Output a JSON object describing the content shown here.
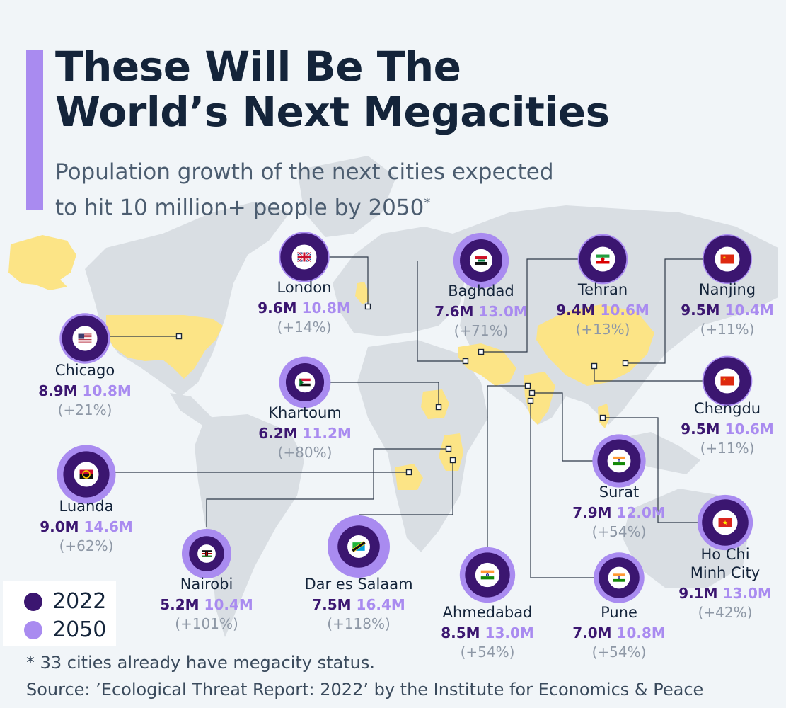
{
  "header": {
    "title_line1": "These Will Be The",
    "title_line2": "World’s Next Megacities",
    "subtitle_line1": "Population growth of the next cities expected",
    "subtitle_line2": "to hit 10 million+ people by 2050",
    "subtitle_mark": "*"
  },
  "legend": {
    "items": [
      {
        "label": "2022",
        "color": "#3b1670"
      },
      {
        "label": "2050",
        "color": "#a98bf0"
      }
    ]
  },
  "footer": {
    "footnote": "* 33 cities already have megacity status.",
    "source": "Source: ’Ecological Threat Report: 2022’ by the Institute for Economics & Peace"
  },
  "colors": {
    "pop_2022": "#3b1670",
    "pop_2050": "#a98bf0",
    "map_land": "#d9dee3",
    "map_highlight": "#fce486",
    "title": "#14243a"
  },
  "chart_data": {
    "type": "bubble-map",
    "title": "These Will Be The World’s Next Megacities",
    "subtitle": "Population growth of the next cities expected to hit 10 million+ people by 2050*",
    "unit": "million people",
    "series": [
      {
        "name": "2022",
        "color": "#3b1670"
      },
      {
        "name": "2050",
        "color": "#a98bf0"
      }
    ],
    "cities": [
      {
        "name": "London",
        "flag": "uk-flag-icon",
        "pop_2022": 9.6,
        "pop_2050": 10.8,
        "label_2022": "9.6M",
        "label_2050": "10.8M",
        "growth": "(+14%)"
      },
      {
        "name": "Baghdad",
        "flag": "iraq-flag-icon",
        "pop_2022": 7.6,
        "pop_2050": 13.0,
        "label_2022": "7.6M",
        "label_2050": "13.0M",
        "growth": "(+71%)"
      },
      {
        "name": "Tehran",
        "flag": "iran-flag-icon",
        "pop_2022": 9.4,
        "pop_2050": 10.6,
        "label_2022": "9.4M",
        "label_2050": "10.6M",
        "growth": "(+13%)"
      },
      {
        "name": "Nanjing",
        "flag": "china-flag-icon",
        "pop_2022": 9.5,
        "pop_2050": 10.4,
        "label_2022": "9.5M",
        "label_2050": "10.4M",
        "growth": "(+11%)"
      },
      {
        "name": "Chicago",
        "flag": "usa-flag-icon",
        "pop_2022": 8.9,
        "pop_2050": 10.8,
        "label_2022": "8.9M",
        "label_2050": "10.8M",
        "growth": "(+21%)"
      },
      {
        "name": "Khartoum",
        "flag": "sudan-flag-icon",
        "pop_2022": 6.2,
        "pop_2050": 11.2,
        "label_2022": "6.2M",
        "label_2050": "11.2M",
        "growth": "(+80%)"
      },
      {
        "name": "Chengdu",
        "flag": "china-flag-icon",
        "pop_2022": 9.5,
        "pop_2050": 10.6,
        "label_2022": "9.5M",
        "label_2050": "10.6M",
        "growth": "(+11%)"
      },
      {
        "name": "Luanda",
        "flag": "angola-flag-icon",
        "pop_2022": 9.0,
        "pop_2050": 14.6,
        "label_2022": "9.0M",
        "label_2050": "14.6M",
        "growth": "(+62%)"
      },
      {
        "name": "Surat",
        "flag": "india-flag-icon",
        "pop_2022": 7.9,
        "pop_2050": 12.0,
        "label_2022": "7.9M",
        "label_2050": "12.0M",
        "growth": "(+54%)"
      },
      {
        "name": "Ho Chi Minh City",
        "name_line1": "Ho Chi",
        "name_line2": "Minh City",
        "flag": "vietnam-flag-icon",
        "pop_2022": 9.1,
        "pop_2050": 13.0,
        "label_2022": "9.1M",
        "label_2050": "13.0M",
        "growth": "(+42%)"
      },
      {
        "name": "Nairobi",
        "flag": "kenya-flag-icon",
        "pop_2022": 5.2,
        "pop_2050": 10.4,
        "label_2022": "5.2M",
        "label_2050": "10.4M",
        "growth": "(+101%)"
      },
      {
        "name": "Dar es Salaam",
        "flag": "tanzania-flag-icon",
        "pop_2022": 7.5,
        "pop_2050": 16.4,
        "label_2022": "7.5M",
        "label_2050": "16.4M",
        "growth": "(+118%)"
      },
      {
        "name": "Ahmedabad",
        "flag": "india-flag-icon",
        "pop_2022": 8.5,
        "pop_2050": 13.0,
        "label_2022": "8.5M",
        "label_2050": "13.0M",
        "growth": "(+54%)"
      },
      {
        "name": "Pune",
        "flag": "india-flag-icon",
        "pop_2022": 7.0,
        "pop_2050": 10.8,
        "label_2022": "7.0M",
        "label_2050": "10.8M",
        "growth": "(+54%)"
      }
    ]
  }
}
